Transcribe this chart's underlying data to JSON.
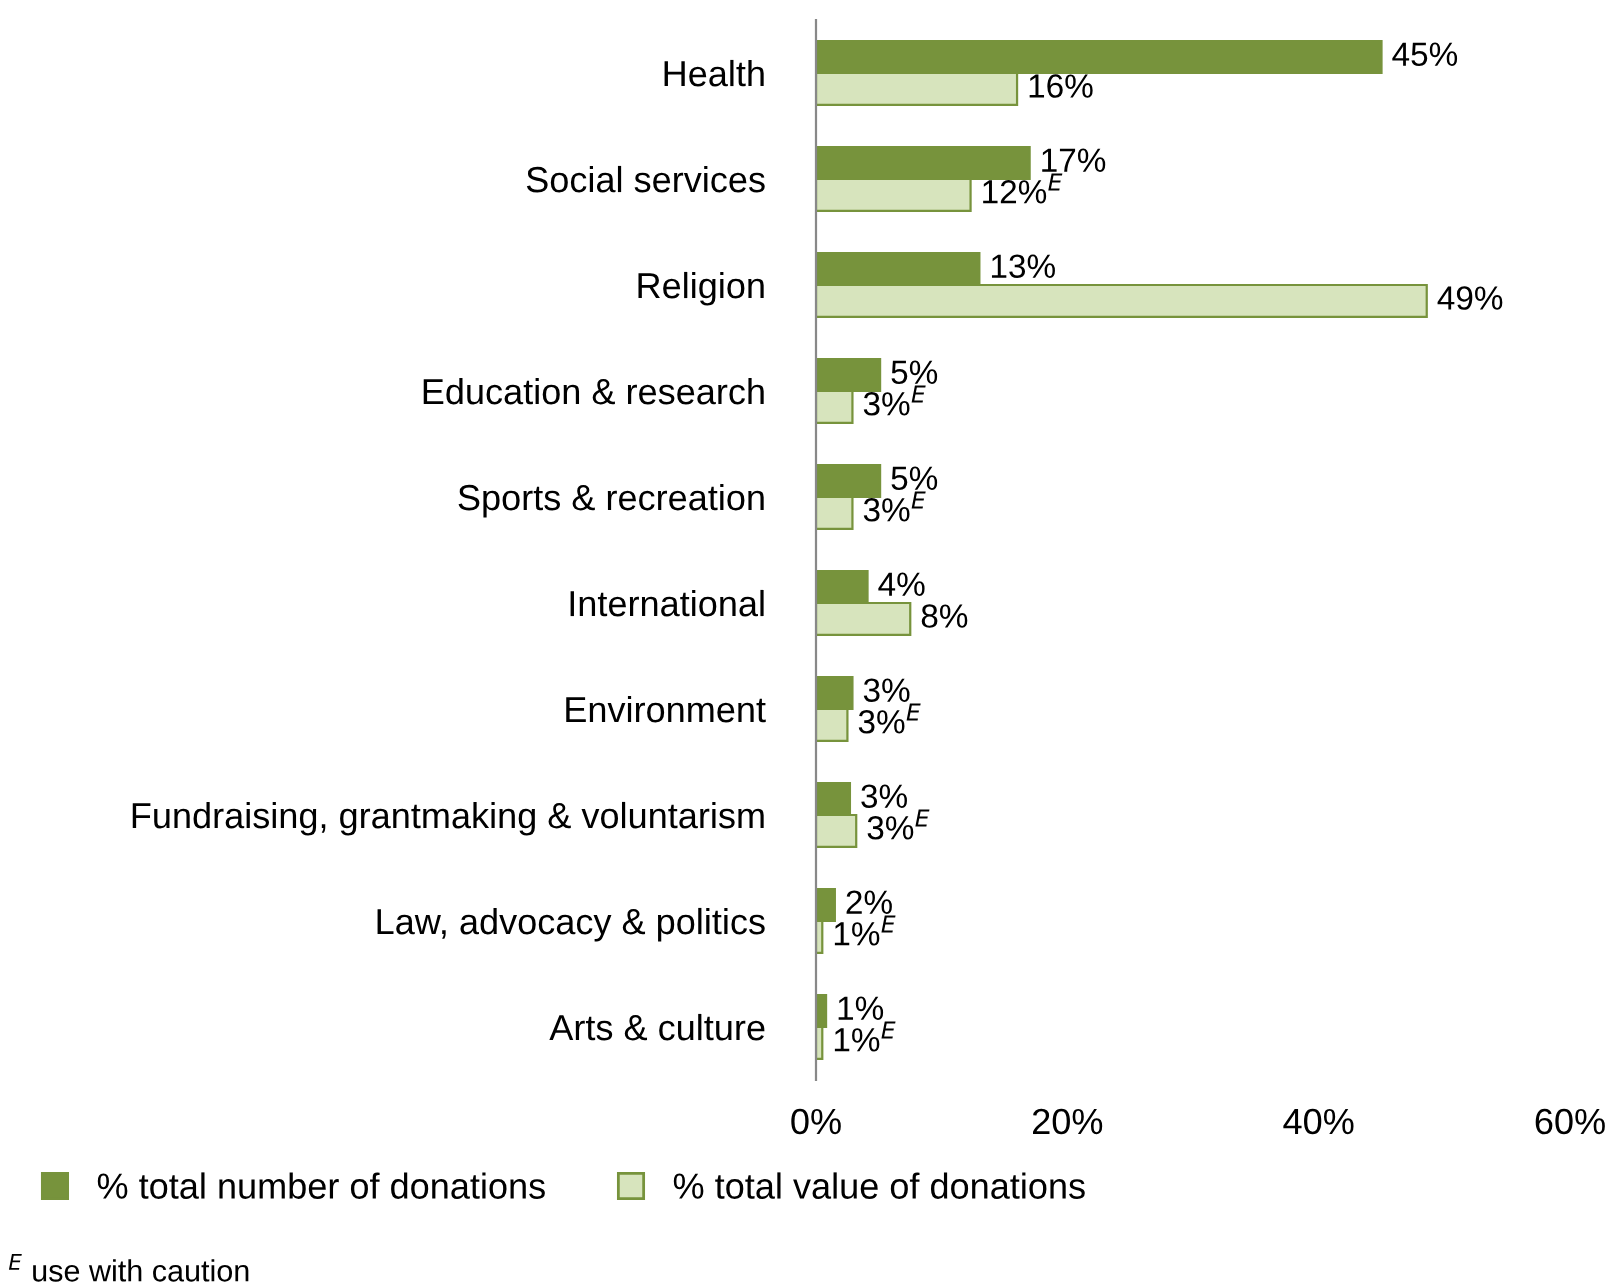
{
  "chart_data": {
    "type": "bar",
    "orientation": "horizontal",
    "categories": [
      "Health",
      "Social services",
      "Religion",
      "Education & research",
      "Sports & recreation",
      "International",
      "Environment",
      "Fundraising, grantmaking & voluntarism",
      "Law, advocacy & politics",
      "Arts & culture"
    ],
    "series": [
      {
        "name": "% total number of donations",
        "color": "#77933c",
        "values": [
          45,
          17,
          13,
          5.1,
          5.1,
          4.1,
          2.9,
          2.7,
          1.5,
          0.8
        ],
        "value_labels": [
          "45%",
          "17%",
          "13%",
          "5%",
          "5%",
          "4%",
          "3%",
          "3%",
          "2%",
          "1%"
        ]
      },
      {
        "name": "% total value of donations",
        "color": "#d7e4bd",
        "values": [
          16,
          12.3,
          48.6,
          2.9,
          2.9,
          7.5,
          2.5,
          3.2,
          0.5,
          0.5
        ],
        "value_labels": [
          "16%",
          "12%$^{E}$",
          "49%",
          "3%$^{E}$",
          "3%$^{E}$",
          "8%",
          "3%$^{E}$",
          "3%$^{E}$",
          "1%$^{E}$",
          "1%$^{E}$"
        ]
      }
    ],
    "xlim": [
      0,
      60
    ],
    "xticks": [
      {
        "value": 0,
        "label": "0%"
      },
      {
        "value": 20,
        "label": "20%"
      },
      {
        "value": 40,
        "label": "40%"
      },
      {
        "value": 60,
        "label": "60%"
      }
    ],
    "grid": false,
    "legend": "bottom",
    "annotations": [
      "$^{E}$ use with caution"
    ]
  }
}
